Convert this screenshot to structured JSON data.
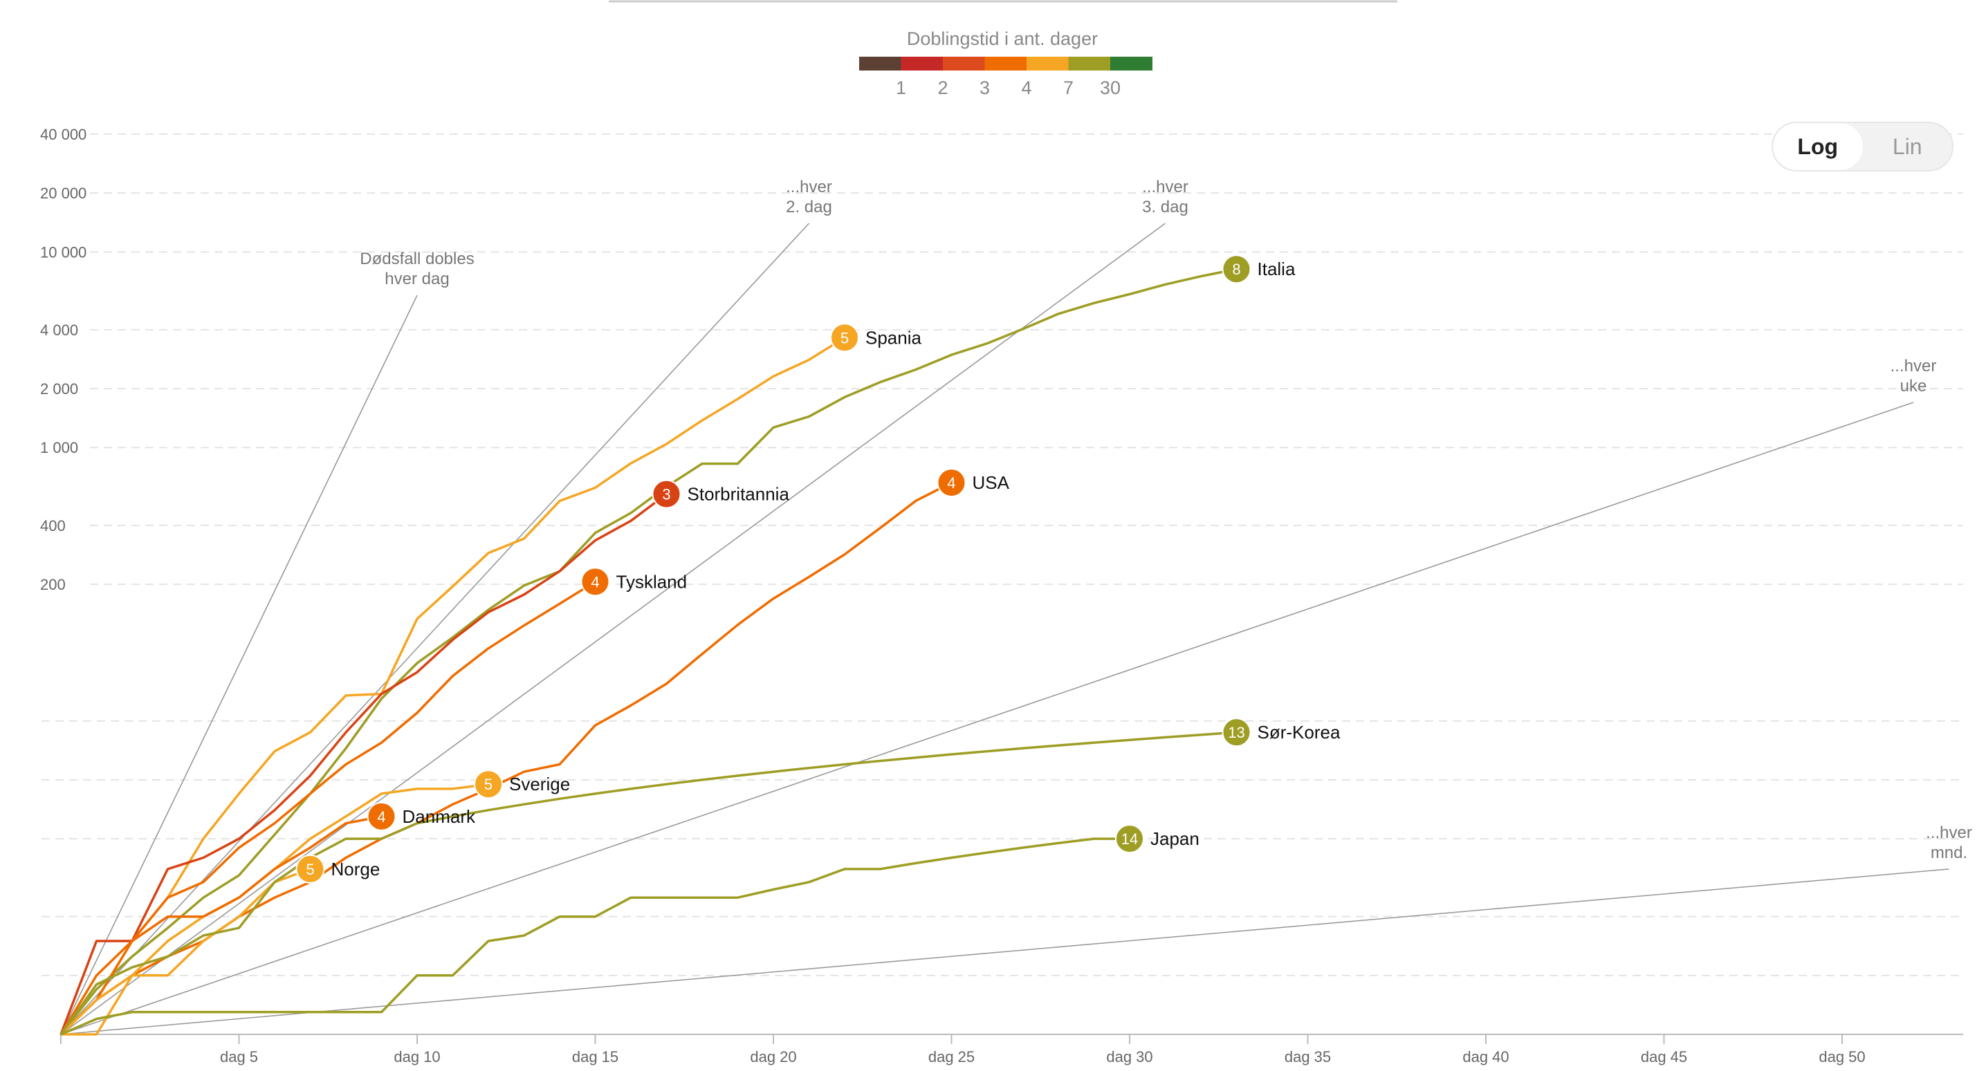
{
  "legend": {
    "title": "Doblingstid i ant. dager",
    "colors": [
      "#5c4033",
      "#c62828",
      "#dc4a1e",
      "#ef6c00",
      "#f5a623",
      "#9e9d24",
      "#2e7d32"
    ],
    "labels": [
      "1",
      "2",
      "3",
      "4",
      "7",
      "30"
    ]
  },
  "toggle": {
    "log_label": "Log",
    "lin_label": "Lin",
    "active": "Log"
  },
  "chart_data": {
    "type": "line",
    "yscale": "log",
    "ylim": [
      1,
      40000
    ],
    "xlim": [
      0,
      54
    ],
    "grid": true,
    "y_ticks": [
      {
        "value": 200,
        "label": "200"
      },
      {
        "value": 400,
        "label": "400"
      },
      {
        "value": 1000,
        "label": "1 000"
      },
      {
        "value": 2000,
        "label": "2 000"
      },
      {
        "value": 4000,
        "label": "4 000"
      },
      {
        "value": 10000,
        "label": "10 000"
      },
      {
        "value": 20000,
        "label": "20 000"
      },
      {
        "value": 40000,
        "label": "40 000"
      }
    ],
    "minor_gridlines": [
      2,
      4,
      10,
      20,
      40
    ],
    "x_ticks": [
      {
        "value": 5,
        "label": "dag 5"
      },
      {
        "value": 10,
        "label": "dag 10"
      },
      {
        "value": 15,
        "label": "dag 15"
      },
      {
        "value": 20,
        "label": "dag 20"
      },
      {
        "value": 25,
        "label": "dag 25"
      },
      {
        "value": 30,
        "label": "dag 30"
      },
      {
        "value": 35,
        "label": "dag 35"
      },
      {
        "value": 40,
        "label": "dag 40"
      },
      {
        "value": 45,
        "label": "dag 45"
      },
      {
        "value": 50,
        "label": "dag 50"
      }
    ],
    "reference_lines": [
      {
        "label_lines": [
          "Dødsfall dobles",
          "hver dag"
        ],
        "end_x": 10.0,
        "end_y": 6000
      },
      {
        "label_lines": [
          "...hver",
          "2. dag"
        ],
        "end_x": 21.0,
        "end_y": 14000
      },
      {
        "label_lines": [
          "...hver",
          "3. dag"
        ],
        "end_x": 31.0,
        "end_y": 14000
      },
      {
        "label_lines": [
          "...hver",
          "uke"
        ],
        "end_x": 52.0,
        "end_y": 1700
      },
      {
        "label_lines": [
          "...hver",
          "mnd."
        ],
        "end_x": 53.0,
        "end_y": 7
      }
    ],
    "series": [
      {
        "name": "Italia",
        "doubling_days": "8",
        "color": "#9e9d24",
        "x": [
          0,
          1,
          2,
          3,
          4,
          5,
          6,
          7,
          8,
          9,
          10,
          11,
          12,
          13,
          14,
          15,
          16,
          17,
          18,
          19,
          20,
          21,
          22,
          23,
          24,
          25,
          26,
          27,
          28,
          29,
          30,
          31,
          32,
          33
        ],
        "y": [
          1,
          1.7,
          2.5,
          3.5,
          5,
          6.5,
          10.5,
          17,
          29,
          52,
          79,
          107,
          148,
          197,
          233,
          366,
          463,
          631,
          827,
          827,
          1266,
          1441,
          1809,
          2158,
          2503,
          2978,
          3405,
          4032,
          4825,
          5476,
          6077,
          6820,
          7503,
          8165
        ]
      },
      {
        "name": "Spania",
        "doubling_days": "5",
        "color": "#f5a623",
        "x": [
          0,
          1,
          2,
          3,
          4,
          5,
          6,
          7,
          8,
          9,
          10,
          11,
          12,
          13,
          14,
          15,
          16,
          17,
          18,
          19,
          20,
          21,
          22
        ],
        "y": [
          1,
          1.5,
          3,
          5,
          10,
          17,
          28,
          35,
          54,
          55,
          133,
          195,
          289,
          342,
          533,
          623,
          830,
          1043,
          1375,
          1772,
          2311,
          2808,
          3647
        ]
      },
      {
        "name": "Storbritannia",
        "doubling_days": "3",
        "color": "#d84315",
        "x": [
          0,
          1,
          2,
          3,
          4,
          5,
          6,
          7,
          8,
          9,
          10,
          11,
          12,
          13,
          14,
          15,
          16,
          17
        ],
        "y": [
          1,
          3,
          3,
          7,
          8,
          10,
          14,
          21,
          35,
          55,
          71,
          104,
          144,
          177,
          233,
          335,
          422,
          578
        ]
      },
      {
        "name": "Tyskland",
        "doubling_days": "4",
        "color": "#ef6c00",
        "x": [
          0,
          1,
          2,
          3,
          4,
          5,
          6,
          7,
          8,
          9,
          10,
          11,
          12,
          13,
          14,
          15
        ],
        "y": [
          1,
          1.5,
          3,
          5,
          6,
          9,
          12,
          17,
          24,
          31,
          44,
          68,
          94,
          123,
          159,
          206
        ]
      },
      {
        "name": "USA",
        "doubling_days": "4",
        "color": "#ef6c00",
        "x": [
          0,
          1,
          2,
          3,
          4,
          5,
          6,
          7,
          8,
          9,
          10,
          11,
          12,
          13,
          14,
          15,
          16,
          17,
          18,
          19,
          20,
          21,
          22,
          23,
          24,
          25
        ],
        "y": [
          1,
          1.5,
          2,
          2.5,
          3,
          4,
          5,
          6,
          8,
          10,
          12,
          15,
          18,
          22,
          24,
          38,
          48,
          62,
          88,
          124,
          169,
          218,
          284,
          388,
          534,
          661
        ]
      },
      {
        "name": "Sverige",
        "doubling_days": "5",
        "color": "#f5a623",
        "x": [
          0,
          1,
          2,
          3,
          4,
          5,
          6,
          7,
          8,
          9,
          10,
          11,
          12
        ],
        "y": [
          1,
          1,
          2,
          3,
          4,
          5,
          7,
          10,
          13,
          17,
          18,
          18,
          19
        ]
      },
      {
        "name": "Danmark",
        "doubling_days": "4",
        "color": "#ef6c00",
        "x": [
          0,
          1,
          2,
          3,
          4,
          5,
          6,
          7,
          8,
          9
        ],
        "y": [
          1,
          2,
          3,
          4,
          4,
          5,
          7,
          9,
          12,
          13
        ]
      },
      {
        "name": "Norge",
        "doubling_days": "5",
        "color": "#f5a623",
        "x": [
          0,
          1,
          2,
          3,
          4,
          5,
          6,
          7
        ],
        "y": [
          1,
          1.5,
          2,
          2,
          3,
          4,
          6,
          7
        ]
      },
      {
        "name": "Sør-Korea",
        "doubling_days": "13",
        "color": "#9e9d24",
        "x": [
          0,
          1,
          2,
          3,
          4,
          5,
          6,
          7,
          8,
          9,
          10,
          11,
          12,
          13,
          14,
          15,
          16,
          17,
          18,
          19,
          20,
          21,
          22,
          23,
          24,
          25,
          26,
          27,
          28,
          29,
          30,
          31,
          32,
          33
        ],
        "y": [
          1,
          1.8,
          2.2,
          2.5,
          3.2,
          3.5,
          6,
          8,
          10,
          10,
          12,
          13,
          14,
          15,
          16,
          17,
          18,
          19,
          20,
          21,
          22,
          23,
          24,
          25,
          26,
          27,
          28,
          29,
          30,
          31,
          32,
          33,
          34,
          35
        ]
      },
      {
        "name": "Japan",
        "doubling_days": "14",
        "color": "#9e9d24",
        "x": [
          0,
          1,
          2,
          3,
          4,
          5,
          6,
          7,
          8,
          9,
          10,
          11,
          12,
          13,
          14,
          15,
          16,
          17,
          18,
          19,
          20,
          21,
          22,
          23,
          24,
          25,
          26,
          27,
          28,
          29,
          30
        ],
        "y": [
          1,
          1.2,
          1.3,
          1.3,
          1.3,
          1.3,
          1.3,
          1.3,
          1.3,
          1.3,
          2,
          2,
          3,
          3.2,
          4,
          4,
          5,
          5,
          5,
          5,
          5.5,
          6,
          7,
          7,
          7.5,
          8,
          8.5,
          9,
          9.5,
          10,
          10
        ]
      }
    ]
  }
}
